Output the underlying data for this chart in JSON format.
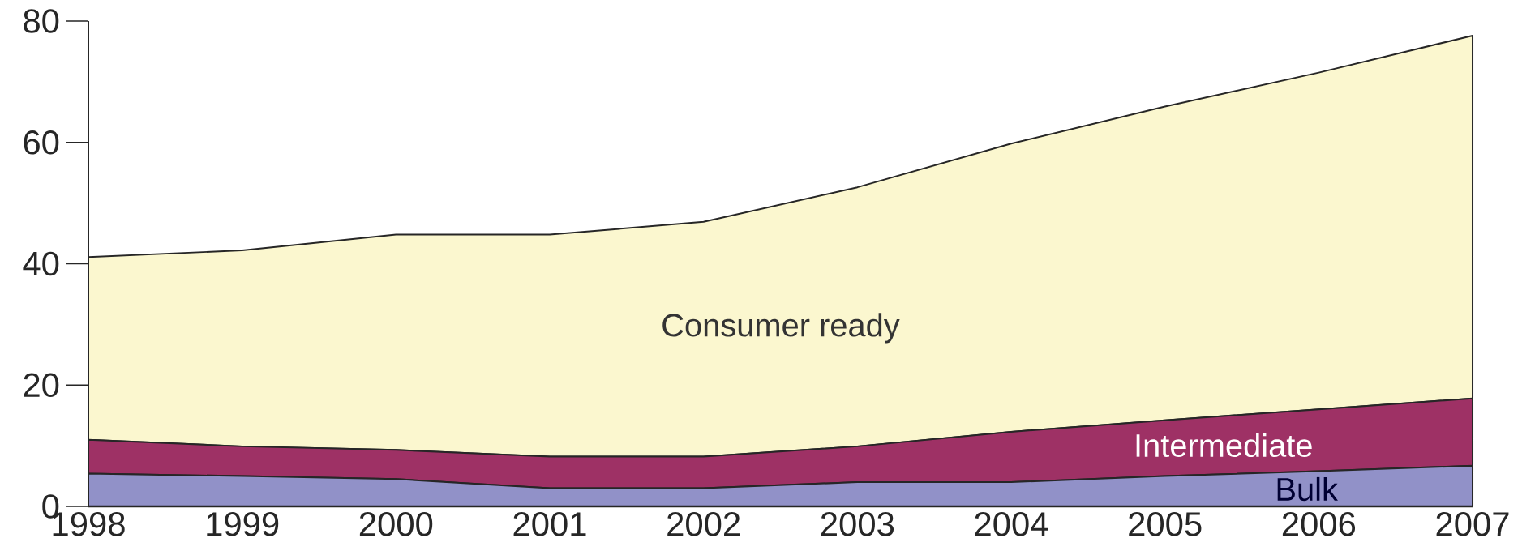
{
  "chart_data": {
    "type": "area",
    "stacked": true,
    "categories": [
      "1998",
      "1999",
      "2000",
      "2001",
      "2002",
      "2003",
      "2004",
      "2005",
      "2006",
      "2007"
    ],
    "ylim": [
      0,
      80
    ],
    "yticks": [
      0,
      20,
      40,
      60,
      80
    ],
    "series": [
      {
        "name": "Bulk",
        "color": "#9191c8",
        "values": [
          5.4,
          5.0,
          4.5,
          3.0,
          3.0,
          4.0,
          4.0,
          5.0,
          5.8,
          6.7
        ]
      },
      {
        "name": "Intermediate",
        "color": "#9e3165",
        "values": [
          5.6,
          4.9,
          4.8,
          5.2,
          5.2,
          5.9,
          8.3,
          9.2,
          10.2,
          11.1
        ]
      },
      {
        "name": "Consumer ready",
        "color": "#fbf7cf",
        "values": [
          30.1,
          32.3,
          35.5,
          36.6,
          38.7,
          42.7,
          47.5,
          51.7,
          55.5,
          59.8
        ]
      }
    ]
  }
}
